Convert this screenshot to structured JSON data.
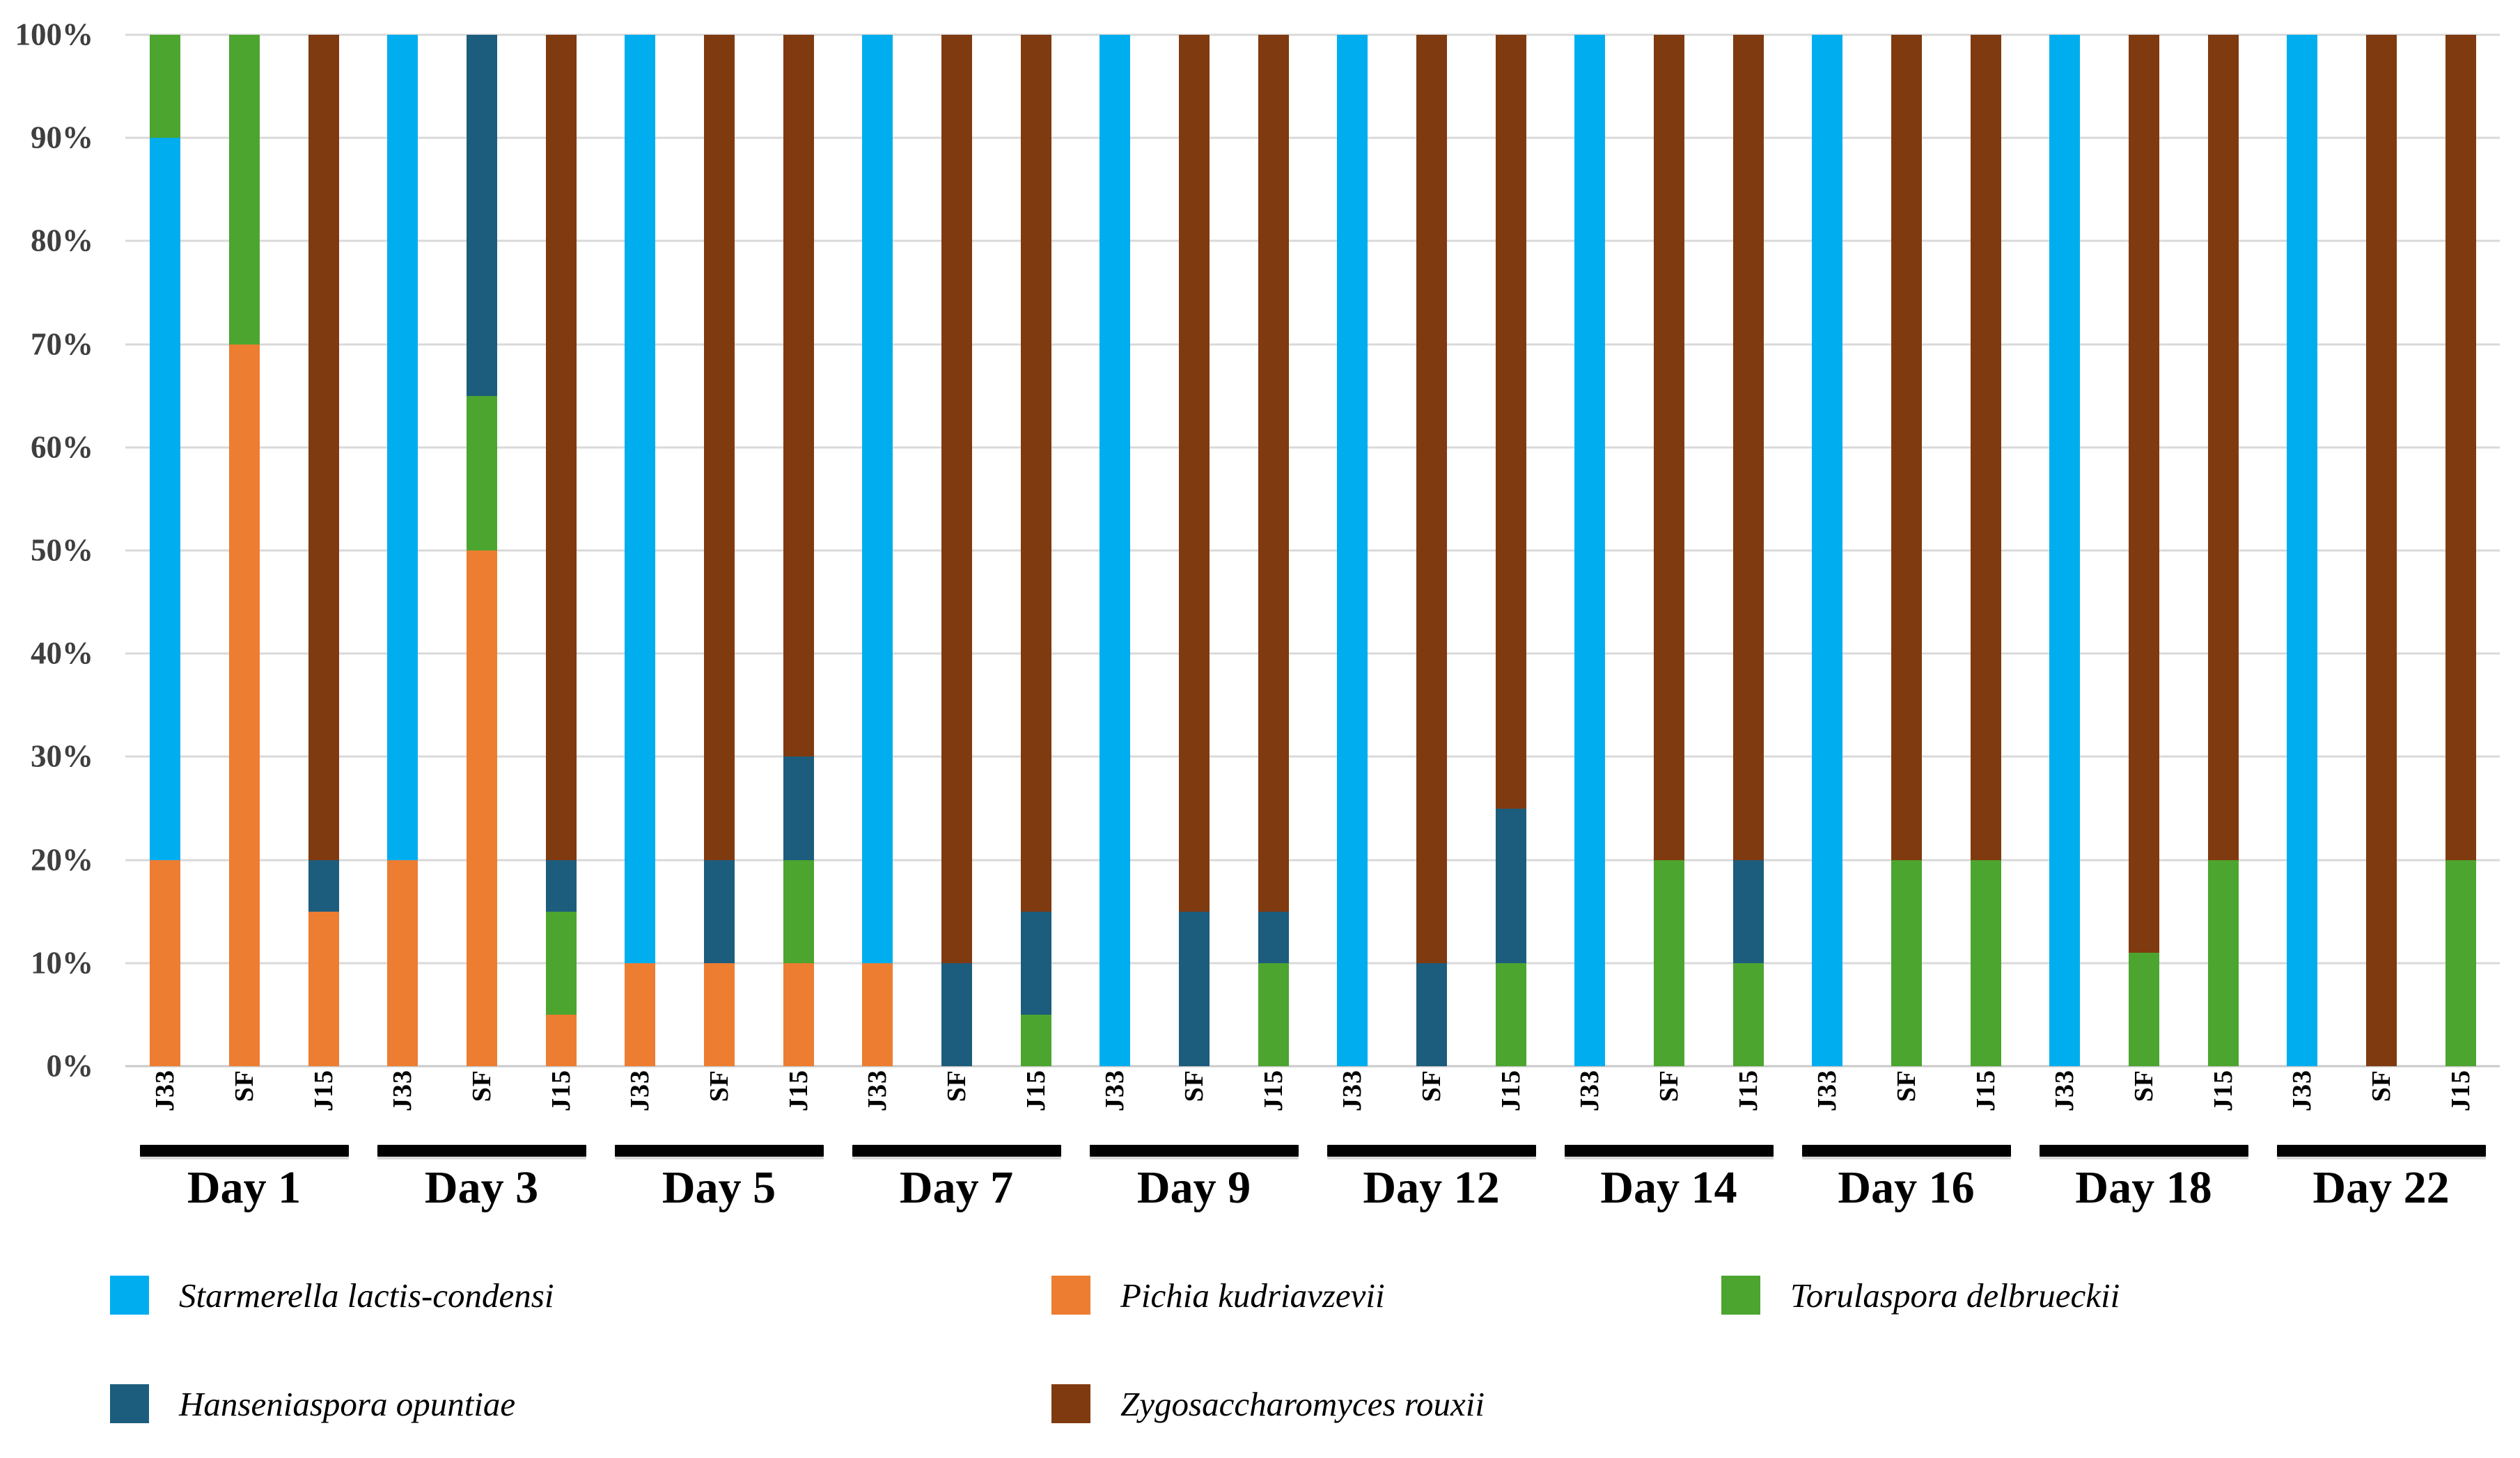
{
  "chart_data": {
    "type": "bar",
    "subtype": "stacked-100-percent",
    "title": "",
    "ylabel": "",
    "xlabel": "",
    "ylim": [
      0,
      100
    ],
    "grid": true,
    "y_axis_ticks": [
      "0%",
      "10%",
      "20%",
      "30%",
      "40%",
      "50%",
      "60%",
      "70%",
      "80%",
      "90%",
      "100%"
    ],
    "y_tick_values": [
      0,
      10,
      20,
      30,
      40,
      50,
      60,
      70,
      80,
      90,
      100
    ],
    "bar_labels": [
      "J33",
      "SF",
      "J15"
    ],
    "stack_order": [
      "pichia",
      "starmerella",
      "torulaspora",
      "hanseniaspora",
      "zygosaccharomyces"
    ],
    "species": {
      "starmerella": {
        "label": "Starmerella lactis-condensi",
        "color": "#00AEEF"
      },
      "pichia": {
        "label": "Pichia kudriavzevii",
        "color": "#ED7D31"
      },
      "torulaspora": {
        "label": "Torulaspora delbrueckii",
        "color": "#4CA52F"
      },
      "hanseniaspora": {
        "label": "Hanseniaspora opuntiae",
        "color": "#1C5D7D"
      },
      "zygosaccharomyces": {
        "label": "Zygosaccharomyces rouxii",
        "color": "#803A10"
      }
    },
    "legend_order": [
      "starmerella",
      "pichia",
      "torulaspora",
      "hanseniaspora",
      "zygosaccharomyces"
    ],
    "legend_position": "bottom",
    "groups": [
      {
        "day": "Day 1",
        "bars": [
          {
            "label": "J33",
            "values": {
              "pichia": 20,
              "starmerella": 70,
              "torulaspora": 10,
              "hanseniaspora": 0,
              "zygosaccharomyces": 0
            }
          },
          {
            "label": "SF",
            "values": {
              "pichia": 70,
              "starmerella": 0,
              "torulaspora": 30,
              "hanseniaspora": 0,
              "zygosaccharomyces": 0
            }
          },
          {
            "label": "J15",
            "values": {
              "pichia": 15,
              "starmerella": 0,
              "torulaspora": 0,
              "hanseniaspora": 5,
              "zygosaccharomyces": 80
            }
          }
        ]
      },
      {
        "day": "Day 3",
        "bars": [
          {
            "label": "J33",
            "values": {
              "pichia": 20,
              "starmerella": 80,
              "torulaspora": 0,
              "hanseniaspora": 0,
              "zygosaccharomyces": 0
            }
          },
          {
            "label": "SF",
            "values": {
              "pichia": 50,
              "starmerella": 0,
              "torulaspora": 15,
              "hanseniaspora": 35,
              "zygosaccharomyces": 0
            }
          },
          {
            "label": "J15",
            "values": {
              "pichia": 5,
              "starmerella": 0,
              "torulaspora": 10,
              "hanseniaspora": 5,
              "zygosaccharomyces": 80
            }
          }
        ]
      },
      {
        "day": "Day 5",
        "bars": [
          {
            "label": "J33",
            "values": {
              "pichia": 10,
              "starmerella": 90,
              "torulaspora": 0,
              "hanseniaspora": 0,
              "zygosaccharomyces": 0
            }
          },
          {
            "label": "SF",
            "values": {
              "pichia": 10,
              "starmerella": 0,
              "torulaspora": 0,
              "hanseniaspora": 10,
              "zygosaccharomyces": 80
            }
          },
          {
            "label": "J15",
            "values": {
              "pichia": 10,
              "starmerella": 0,
              "torulaspora": 10,
              "hanseniaspora": 10,
              "zygosaccharomyces": 70
            }
          }
        ]
      },
      {
        "day": "Day 7",
        "bars": [
          {
            "label": "J33",
            "values": {
              "pichia": 10,
              "starmerella": 90,
              "torulaspora": 0,
              "hanseniaspora": 0,
              "zygosaccharomyces": 0
            }
          },
          {
            "label": "SF",
            "values": {
              "pichia": 0,
              "starmerella": 0,
              "torulaspora": 0,
              "hanseniaspora": 10,
              "zygosaccharomyces": 90
            }
          },
          {
            "label": "J15",
            "values": {
              "pichia": 0,
              "starmerella": 0,
              "torulaspora": 5,
              "hanseniaspora": 10,
              "zygosaccharomyces": 85
            }
          }
        ]
      },
      {
        "day": "Day 9",
        "bars": [
          {
            "label": "J33",
            "values": {
              "pichia": 0,
              "starmerella": 100,
              "torulaspora": 0,
              "hanseniaspora": 0,
              "zygosaccharomyces": 0
            }
          },
          {
            "label": "SF",
            "values": {
              "pichia": 0,
              "starmerella": 0,
              "torulaspora": 0,
              "hanseniaspora": 15,
              "zygosaccharomyces": 85
            }
          },
          {
            "label": "J15",
            "values": {
              "pichia": 0,
              "starmerella": 0,
              "torulaspora": 10,
              "hanseniaspora": 5,
              "zygosaccharomyces": 85
            }
          }
        ]
      },
      {
        "day": "Day 12",
        "bars": [
          {
            "label": "J33",
            "values": {
              "pichia": 0,
              "starmerella": 100,
              "torulaspora": 0,
              "hanseniaspora": 0,
              "zygosaccharomyces": 0
            }
          },
          {
            "label": "SF",
            "values": {
              "pichia": 0,
              "starmerella": 0,
              "torulaspora": 0,
              "hanseniaspora": 10,
              "zygosaccharomyces": 90
            }
          },
          {
            "label": "J15",
            "values": {
              "pichia": 0,
              "starmerella": 0,
              "torulaspora": 10,
              "hanseniaspora": 15,
              "zygosaccharomyces": 75
            }
          }
        ]
      },
      {
        "day": "Day 14",
        "bars": [
          {
            "label": "J33",
            "values": {
              "pichia": 0,
              "starmerella": 100,
              "torulaspora": 0,
              "hanseniaspora": 0,
              "zygosaccharomyces": 0
            }
          },
          {
            "label": "SF",
            "values": {
              "pichia": 0,
              "starmerella": 0,
              "torulaspora": 20,
              "hanseniaspora": 0,
              "zygosaccharomyces": 80
            }
          },
          {
            "label": "J15",
            "values": {
              "pichia": 0,
              "starmerella": 0,
              "torulaspora": 10,
              "hanseniaspora": 10,
              "zygosaccharomyces": 80
            }
          }
        ]
      },
      {
        "day": "Day 16",
        "bars": [
          {
            "label": "J33",
            "values": {
              "pichia": 0,
              "starmerella": 100,
              "torulaspora": 0,
              "hanseniaspora": 0,
              "zygosaccharomyces": 0
            }
          },
          {
            "label": "SF",
            "values": {
              "pichia": 0,
              "starmerella": 0,
              "torulaspora": 20,
              "hanseniaspora": 0,
              "zygosaccharomyces": 80
            }
          },
          {
            "label": "J15",
            "values": {
              "pichia": 0,
              "starmerella": 0,
              "torulaspora": 20,
              "hanseniaspora": 0,
              "zygosaccharomyces": 80
            }
          }
        ]
      },
      {
        "day": "Day 18",
        "bars": [
          {
            "label": "J33",
            "values": {
              "pichia": 0,
              "starmerella": 100,
              "torulaspora": 0,
              "hanseniaspora": 0,
              "zygosaccharomyces": 0
            }
          },
          {
            "label": "SF",
            "values": {
              "pichia": 0,
              "starmerella": 0,
              "torulaspora": 11,
              "hanseniaspora": 0,
              "zygosaccharomyces": 89
            }
          },
          {
            "label": "J15",
            "values": {
              "pichia": 0,
              "starmerella": 0,
              "torulaspora": 20,
              "hanseniaspora": 0,
              "zygosaccharomyces": 80
            }
          }
        ]
      },
      {
        "day": "Day 22",
        "bars": [
          {
            "label": "J33",
            "values": {
              "pichia": 0,
              "starmerella": 100,
              "torulaspora": 0,
              "hanseniaspora": 0,
              "zygosaccharomyces": 0
            }
          },
          {
            "label": "SF",
            "values": {
              "pichia": 0,
              "starmerella": 0,
              "torulaspora": 0,
              "hanseniaspora": 0,
              "zygosaccharomyces": 100
            }
          },
          {
            "label": "J15",
            "values": {
              "pichia": 0,
              "starmerella": 0,
              "torulaspora": 20,
              "hanseniaspora": 0,
              "zygosaccharomyces": 80
            }
          }
        ]
      }
    ],
    "colors": {
      "gridline": "#D9D9D9",
      "axis_line": "#C9C9C9",
      "y_tick_text": "#3F3F3F",
      "category_text": "#000000",
      "group_underline": "#000000"
    }
  }
}
